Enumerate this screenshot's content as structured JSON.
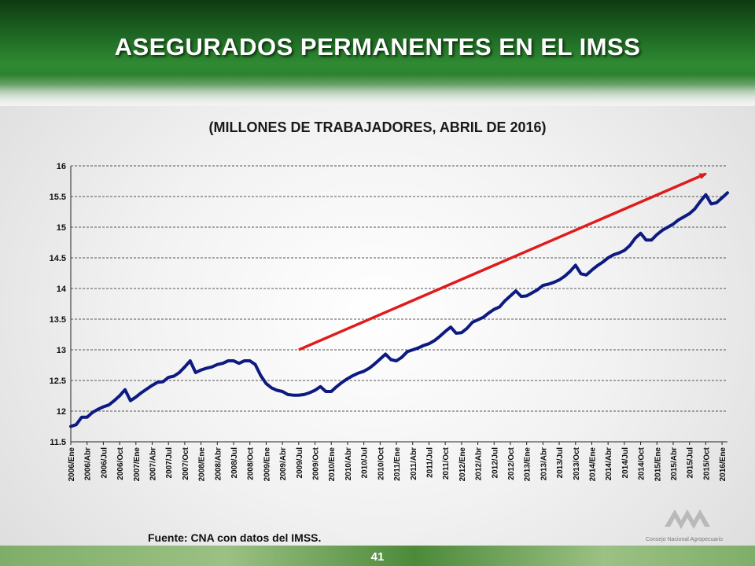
{
  "slide": {
    "title": "ASEGURADOS PERMANENTES EN EL IMSS",
    "subtitle": "(MILLONES DE TRABAJADORES, ABRIL DE 2016)",
    "source": "Fuente: CNA con datos del IMSS.",
    "page_number": "41",
    "logo_text": "Consejo Nacional Agropecuario"
  },
  "colors": {
    "series": "#0d1a80",
    "trend_arrow": "#e01b1b",
    "grid": "#555555"
  },
  "chart_data": {
    "type": "line",
    "ylim": [
      11.5,
      16
    ],
    "yticks": [
      "11.5",
      "12",
      "12.5",
      "13",
      "13.5",
      "14",
      "14.5",
      "15",
      "15.5",
      "16"
    ],
    "grid": "horizontal dashed",
    "xtick_labels": [
      "2006/Ene",
      "2006/Abr",
      "2006/Jul",
      "2006/Oct",
      "2007/Ene",
      "2007/Abr",
      "2007/Jul",
      "2007/Oct",
      "2008/Ene",
      "2008/Abr",
      "2008/Jul",
      "2008/Oct",
      "2009/Ene",
      "2009/Abr",
      "2009/Jul",
      "2009/Oct",
      "2010/Ene",
      "2010/Abr",
      "2010/Jul",
      "2010/Oct",
      "2011/Ene",
      "2011/Abr",
      "2011/Jul",
      "2011/Oct",
      "2012/Ene",
      "2012/Abr",
      "2012/Jul",
      "2012/Oct",
      "2013/Ene",
      "2013/Abr",
      "2013/Jul",
      "2013/Oct",
      "2014/Ene",
      "2014/Abr",
      "2014/Jul",
      "2014/Oct",
      "2015/Ene",
      "2015/Abr",
      "2015/Jul",
      "2015/Oct",
      "2016/Ene"
    ],
    "series": [
      {
        "values": [
          11.75,
          11.78,
          11.9,
          11.9,
          11.98,
          12.03,
          12.07,
          12.1,
          12.17,
          12.25,
          12.35,
          12.17,
          12.23,
          12.3,
          12.36,
          12.42,
          12.47,
          12.48,
          12.55,
          12.57,
          12.63,
          12.72,
          12.82,
          12.63,
          12.67,
          12.7,
          12.72,
          12.76,
          12.78,
          12.82,
          12.82,
          12.78,
          12.82,
          12.82,
          12.76,
          12.58,
          12.45,
          12.38,
          12.34,
          12.32,
          12.27,
          12.26,
          12.26,
          12.27,
          12.3,
          12.34,
          12.4,
          12.32,
          12.32,
          12.4,
          12.47,
          12.53,
          12.58,
          12.62,
          12.65,
          12.7,
          12.77,
          12.85,
          12.93,
          12.84,
          12.82,
          12.88,
          12.97,
          13.0,
          13.03,
          13.07,
          13.1,
          13.15,
          13.22,
          13.3,
          13.37,
          13.27,
          13.28,
          13.35,
          13.45,
          13.49,
          13.53,
          13.6,
          13.66,
          13.7,
          13.8,
          13.88,
          13.96,
          13.87,
          13.88,
          13.93,
          13.98,
          14.05,
          14.07,
          14.1,
          14.14,
          14.2,
          14.28,
          14.38,
          14.24,
          14.22,
          14.3,
          14.37,
          14.43,
          14.5,
          14.55,
          14.58,
          14.62,
          14.7,
          14.82,
          14.9,
          14.79,
          14.79,
          14.88,
          14.95,
          15.0,
          15.05,
          15.12,
          15.17,
          15.22,
          15.3,
          15.42,
          15.53,
          15.38,
          15.4,
          15.48,
          15.56
        ]
      }
    ],
    "annotation": "upward trend arrow"
  }
}
